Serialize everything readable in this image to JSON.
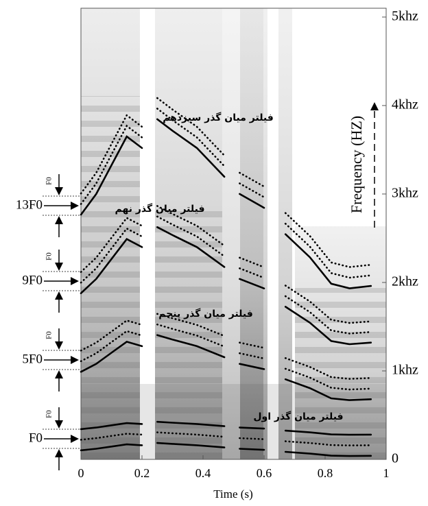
{
  "chart_data": {
    "type": "line",
    "xlabel": "Time (s)",
    "ylabel": "Frequency (HZ)",
    "x": [
      0,
      0.05,
      0.1,
      0.15,
      0.2,
      0.22,
      0.25,
      0.3,
      0.38,
      0.47,
      0.5,
      0.52,
      0.6,
      0.64,
      0.67,
      0.75,
      0.82,
      0.88,
      0.95
    ],
    "xlim": [
      0,
      1
    ],
    "xticks": [
      0,
      0.2,
      0.4,
      0.6,
      0.8,
      1
    ],
    "ylim": [
      0,
      5100
    ],
    "yticks": [
      {
        "value": 0,
        "label": "0"
      },
      {
        "value": 1000,
        "label": "1khz"
      },
      {
        "value": 2000,
        "label": "2khz"
      },
      {
        "value": 3000,
        "label": "3khz"
      },
      {
        "value": 4000,
        "label": "4khz"
      },
      {
        "value": 5000,
        "label": "5khz"
      }
    ],
    "series": [
      {
        "color": "#000000",
        "dotted": false,
        "values": [
          102,
          120,
          145,
          170,
          160,
          null,
          185,
          175,
          160,
          135,
          null,
          120,
          108,
          null,
          85,
          65,
          42,
          38,
          40
        ]
      },
      {
        "color": "#000000",
        "dotted": true,
        "values": [
          222,
          240,
          265,
          290,
          280,
          null,
          305,
          295,
          280,
          255,
          null,
          240,
          228,
          null,
          205,
          185,
          162,
          158,
          160
        ]
      },
      {
        "color": "#000000",
        "dotted": false,
        "values": [
          342,
          360,
          385,
          410,
          400,
          null,
          425,
          415,
          400,
          375,
          null,
          360,
          348,
          null,
          325,
          305,
          282,
          278,
          280
        ]
      },
      {
        "color": "#000000",
        "dotted": false,
        "values": [
          990,
          1080,
          1205,
          1330,
          1280,
          null,
          1405,
          1355,
          1280,
          1155,
          null,
          1080,
          1020,
          null,
          905,
          805,
          690,
          670,
          680
        ]
      },
      {
        "color": "#000000",
        "dotted": true,
        "values": [
          1110,
          1200,
          1325,
          1450,
          1400,
          null,
          1525,
          1475,
          1400,
          1275,
          null,
          1200,
          1140,
          null,
          1025,
          925,
          810,
          790,
          800
        ]
      },
      {
        "color": "#000000",
        "dotted": true,
        "values": [
          1230,
          1320,
          1445,
          1570,
          1520,
          null,
          1645,
          1595,
          1520,
          1395,
          null,
          1320,
          1260,
          null,
          1145,
          1045,
          930,
          910,
          920
        ]
      },
      {
        "color": "#000000",
        "dotted": false,
        "values": [
          1878,
          2040,
          2265,
          2490,
          2400,
          null,
          2625,
          2535,
          2400,
          2175,
          null,
          2040,
          1932,
          null,
          1725,
          1545,
          1338,
          1302,
          1320
        ]
      },
      {
        "color": "#000000",
        "dotted": true,
        "values": [
          1998,
          2160,
          2385,
          2610,
          2520,
          null,
          2745,
          2655,
          2520,
          2295,
          null,
          2160,
          2052,
          null,
          1845,
          1665,
          1458,
          1422,
          1440
        ]
      },
      {
        "color": "#000000",
        "dotted": true,
        "values": [
          2118,
          2280,
          2505,
          2730,
          2640,
          null,
          2865,
          2775,
          2640,
          2415,
          null,
          2280,
          2172,
          null,
          1965,
          1785,
          1578,
          1542,
          1560
        ]
      },
      {
        "color": "#000000",
        "dotted": false,
        "values": [
          2766,
          3000,
          3325,
          3650,
          3520,
          null,
          3845,
          3715,
          3520,
          3195,
          null,
          3000,
          2844,
          null,
          2545,
          2285,
          1986,
          1934,
          1960
        ]
      },
      {
        "color": "#000000",
        "dotted": true,
        "values": [
          2886,
          3120,
          3445,
          3770,
          3640,
          null,
          3965,
          3835,
          3640,
          3315,
          null,
          3120,
          2964,
          null,
          2665,
          2405,
          2106,
          2054,
          2080
        ]
      },
      {
        "color": "#000000",
        "dotted": true,
        "values": [
          3006,
          3240,
          3565,
          3890,
          3760,
          null,
          4085,
          3955,
          3760,
          3435,
          null,
          3240,
          3084,
          null,
          2785,
          2525,
          2226,
          2174,
          2200
        ]
      }
    ],
    "annotations": [
      "فیلتر میان گذر سیزدهم",
      "فیلتر میان گذر نهم",
      "فیلتر میان گذر پنجم",
      "فیلتر میان گذر اول"
    ],
    "harmonic_labels": [
      "13F0",
      "9F0",
      "5F0",
      "F0"
    ],
    "spacing_label": "F0"
  }
}
